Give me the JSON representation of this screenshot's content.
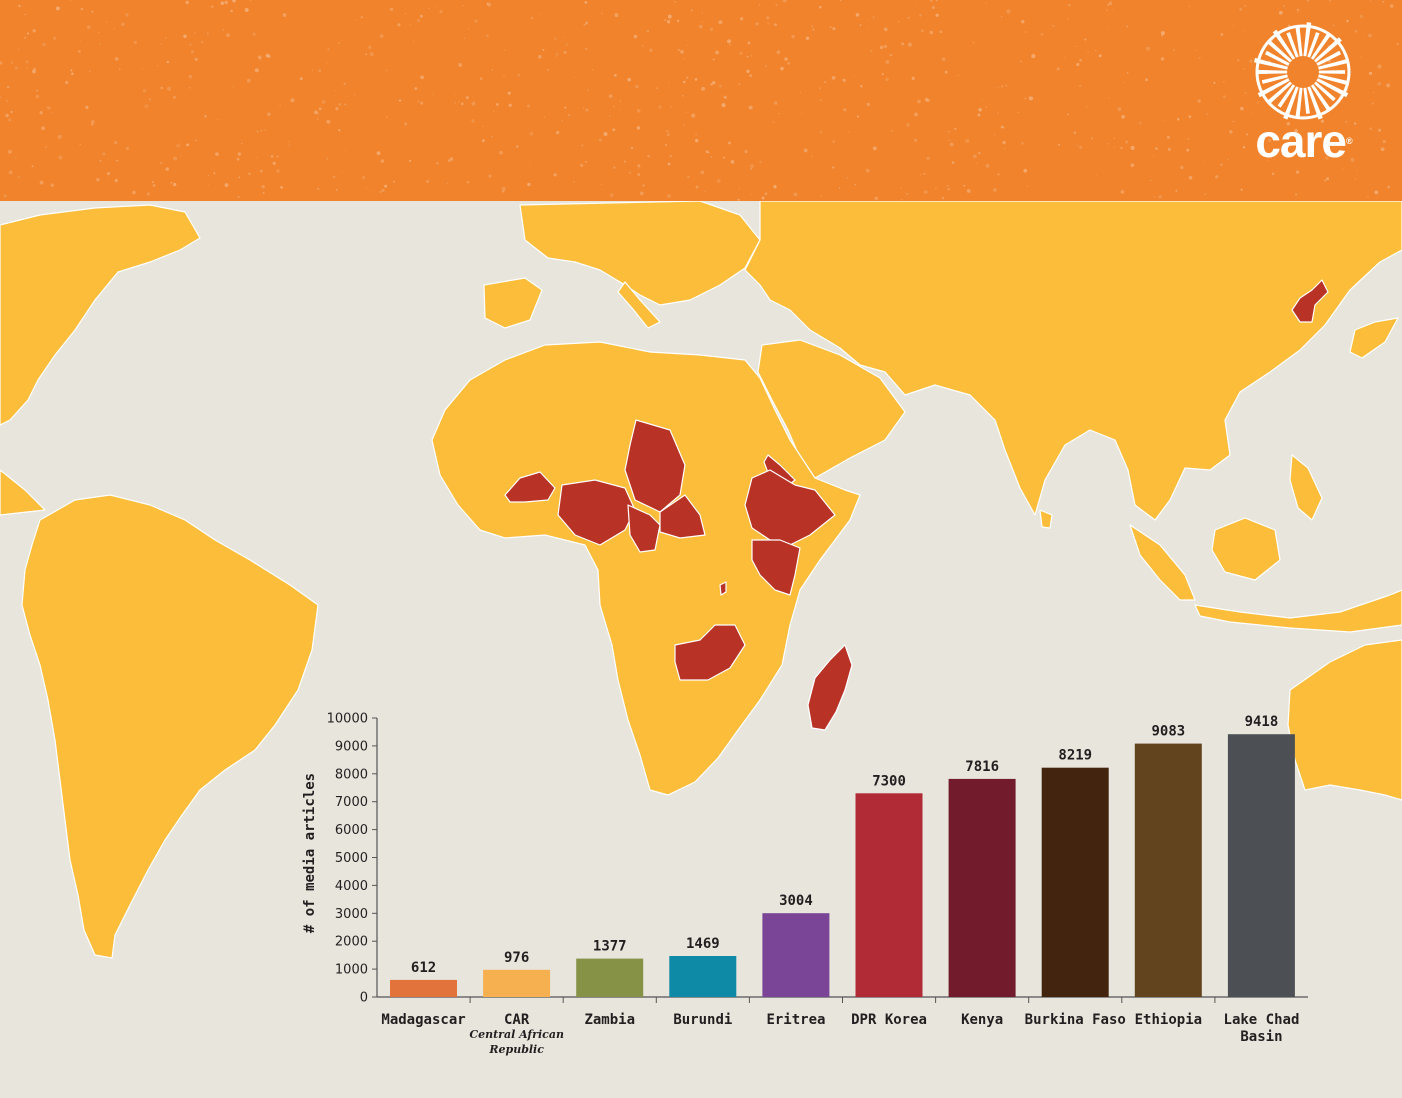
{
  "brand": {
    "logo_text": "care",
    "logo_mark": "®",
    "header_color": "#f0832b"
  },
  "map": {
    "land_color": "#fbbd3a",
    "highlight_color": "#b83326",
    "ocean_color": "#e8e5dd"
  },
  "chart_data": {
    "type": "bar",
    "categories": [
      "Madagascar",
      "CAR",
      "Zambia",
      "Burundi",
      "Eritrea",
      "DPR Korea",
      "Kenya",
      "Burkina Faso",
      "Ethiopia",
      "Lake Chad Basin"
    ],
    "category_lines": [
      [
        "Madagascar"
      ],
      [
        "CAR"
      ],
      [
        "Zambia"
      ],
      [
        "Burundi"
      ],
      [
        "Eritrea"
      ],
      [
        "DPR Korea"
      ],
      [
        "Kenya"
      ],
      [
        "Burkina Faso"
      ],
      [
        "Ethiopia"
      ],
      [
        "Lake Chad",
        "Basin"
      ]
    ],
    "category_sublabels": [
      "",
      "Central African Republic",
      "",
      "",
      "",
      "",
      "",
      "",
      "",
      ""
    ],
    "category_sublabel_lines": [
      [],
      [
        "Central African",
        "Republic"
      ],
      [],
      [],
      [],
      [],
      [],
      [],
      [],
      []
    ],
    "values": [
      612,
      976,
      1377,
      1469,
      3004,
      7300,
      7816,
      8219,
      9083,
      9418
    ],
    "colors": [
      "#e2733a",
      "#f7b050",
      "#869347",
      "#0e8aa7",
      "#7a4497",
      "#b02b36",
      "#721b2d",
      "#43240f",
      "#62441f",
      "#4c5054"
    ],
    "ylabel": "# of media articles",
    "ylim": [
      0,
      10000
    ],
    "yticks": [
      0,
      1000,
      2000,
      3000,
      4000,
      5000,
      6000,
      7000,
      8000,
      9000,
      10000
    ],
    "grid": false,
    "data_labels": true
  }
}
